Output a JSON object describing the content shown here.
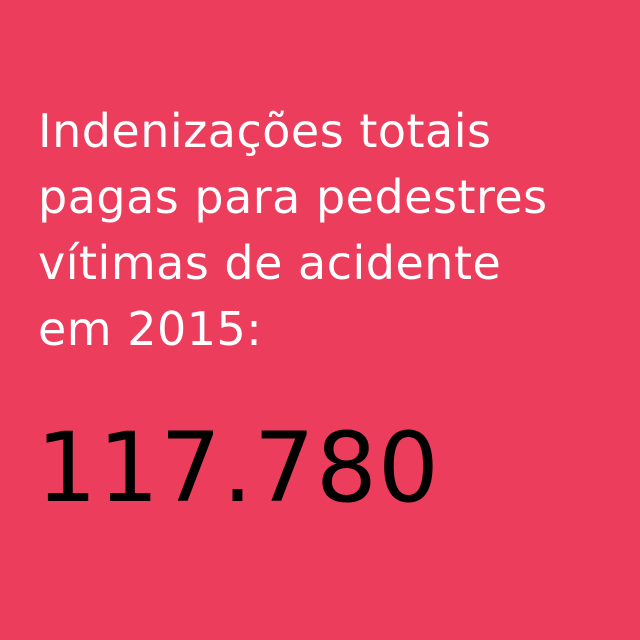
{
  "headline": {
    "lines": [
      "Indenizações totais",
      "pagas para pedestres",
      "vítimas de acidente",
      "em 2015:"
    ]
  },
  "value": "117.780",
  "colors": {
    "background": "#ec3d5c",
    "headline_text": "#ffffff",
    "value_text": "#000000"
  }
}
